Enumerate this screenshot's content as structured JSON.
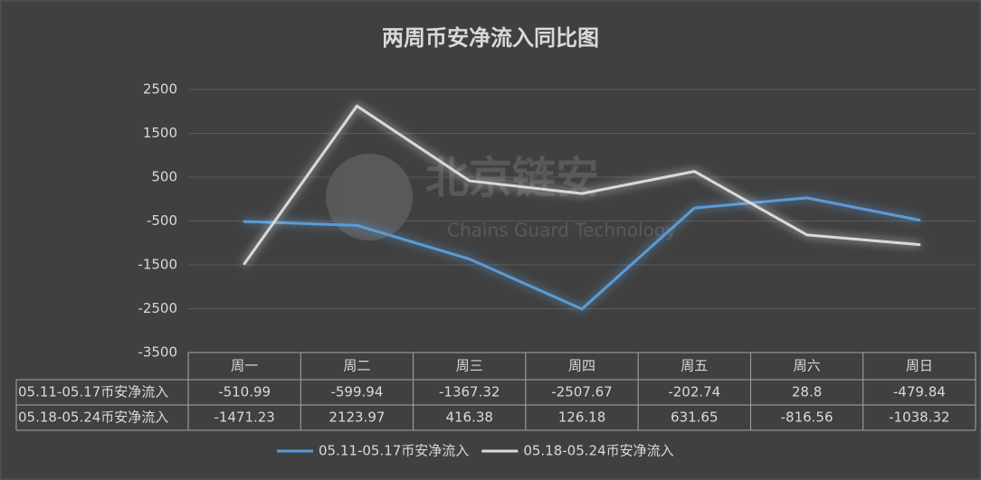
{
  "chart_data": {
    "type": "line",
    "title": "两周币安净流入同比图",
    "categories": [
      "周一",
      "周二",
      "周三",
      "周四",
      "周五",
      "周六",
      "周日"
    ],
    "series": [
      {
        "name": "05.11-05.17币安净流入",
        "color": "#5b9bd5",
        "values": [
          -510.99,
          -599.94,
          -1367.32,
          -2507.67,
          -202.74,
          28.8,
          -479.84
        ]
      },
      {
        "name": "05.18-05.24币安净流入",
        "color": "#d9d9d9",
        "values": [
          -1471.23,
          2123.97,
          416.38,
          126.18,
          631.65,
          -816.56,
          -1038.32
        ]
      }
    ],
    "ylim": [
      -3500,
      2500
    ],
    "yticks": [
      -3500,
      -2500,
      -1500,
      -500,
      500,
      1500,
      2500
    ],
    "grid": true,
    "legend": "bottom",
    "data_table": true,
    "watermark": {
      "title": "北京链安",
      "subtitle": "Chains Guard Technology"
    }
  }
}
